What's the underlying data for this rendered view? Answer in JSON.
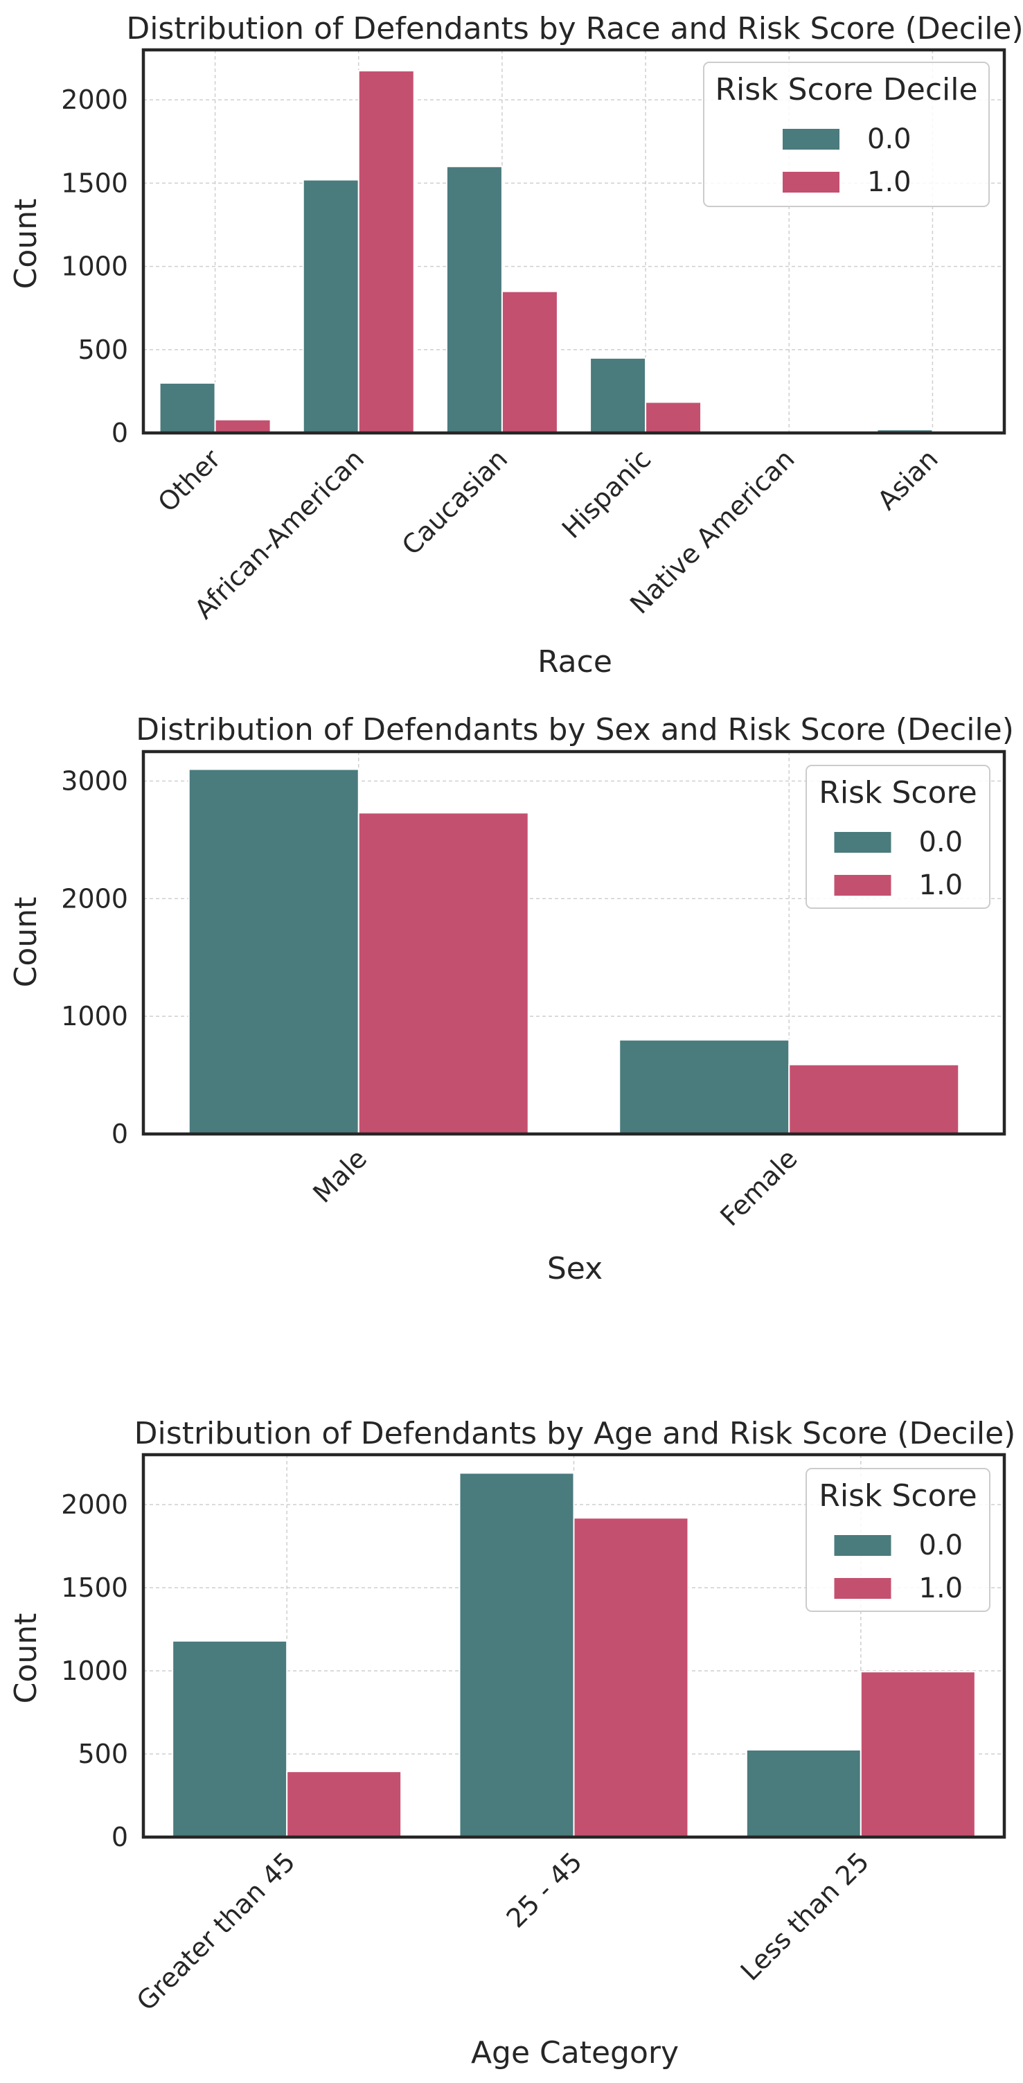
{
  "colors": {
    "series0": "#4a7b7d",
    "series1": "#c4506f"
  },
  "chart_data": [
    {
      "type": "bar",
      "title": "Distribution of Defendants by Race and Risk Score (Decile)",
      "xlabel": "Race",
      "ylabel": "Count",
      "ylim": [
        0,
        2300
      ],
      "yticks": [
        0,
        500,
        1000,
        1500,
        2000
      ],
      "grid": true,
      "legend": {
        "title": "Risk Score Decile",
        "placement": "top-right"
      },
      "categories": [
        "Other",
        "African-American",
        "Caucasian",
        "Hispanic",
        "Native American",
        "Asian"
      ],
      "series": [
        {
          "name": "0.0",
          "values": [
            300,
            1520,
            1600,
            450,
            5,
            20
          ]
        },
        {
          "name": "1.0",
          "values": [
            80,
            2175,
            850,
            185,
            5,
            8
          ]
        }
      ]
    },
    {
      "type": "bar",
      "title": "Distribution of Defendants by Sex and Risk Score (Decile)",
      "xlabel": "Sex",
      "ylabel": "Count",
      "ylim": [
        0,
        3250
      ],
      "yticks": [
        0,
        1000,
        2000,
        3000
      ],
      "grid": true,
      "legend": {
        "title": "Risk Score",
        "placement": "top-right"
      },
      "categories": [
        "Male",
        "Female"
      ],
      "series": [
        {
          "name": "0.0",
          "values": [
            3100,
            800
          ]
        },
        {
          "name": "1.0",
          "values": [
            2730,
            590
          ]
        }
      ]
    },
    {
      "type": "bar",
      "title": "Distribution of Defendants by Age and Risk Score (Decile)",
      "xlabel": "Age Category",
      "ylabel": "Count",
      "ylim": [
        0,
        2300
      ],
      "yticks": [
        0,
        500,
        1000,
        1500,
        2000
      ],
      "grid": true,
      "legend": {
        "title": "Risk Score",
        "placement": "top-right"
      },
      "categories": [
        "Greater than 45",
        "25 - 45",
        "Less than 25"
      ],
      "series": [
        {
          "name": "0.0",
          "values": [
            1180,
            2190,
            525
          ]
        },
        {
          "name": "1.0",
          "values": [
            395,
            1920,
            995
          ]
        }
      ]
    }
  ]
}
